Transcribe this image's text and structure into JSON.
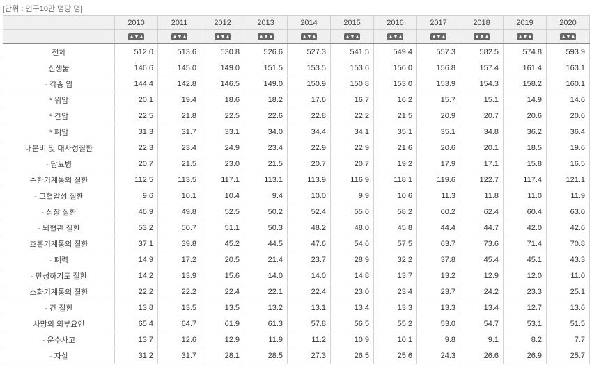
{
  "unit_label": "[단위 : 인구10만 명당 명]",
  "years": [
    "2010",
    "2011",
    "2012",
    "2013",
    "2014",
    "2015",
    "2016",
    "2017",
    "2018",
    "2019",
    "2020"
  ],
  "sort_icon_glyph": "▲▼▲",
  "rows": [
    {
      "label": "전체",
      "v": [
        "512.0",
        "513.6",
        "530.8",
        "526.6",
        "527.3",
        "541.5",
        "549.4",
        "557.3",
        "582.5",
        "574.8",
        "593.9"
      ]
    },
    {
      "label": "신생물",
      "v": [
        "146.6",
        "145.0",
        "149.0",
        "151.5",
        "153.5",
        "153.6",
        "156.0",
        "156.8",
        "157.4",
        "161.4",
        "163.1"
      ]
    },
    {
      "label": "- 각종 암",
      "v": [
        "144.4",
        "142.8",
        "146.5",
        "149.0",
        "150.9",
        "150.8",
        "153.0",
        "153.9",
        "154.3",
        "158.2",
        "160.1"
      ]
    },
    {
      "label": "* 위암",
      "v": [
        "20.1",
        "19.4",
        "18.6",
        "18.2",
        "17.6",
        "16.7",
        "16.2",
        "15.7",
        "15.1",
        "14.9",
        "14.6"
      ]
    },
    {
      "label": "* 간암",
      "v": [
        "22.5",
        "21.8",
        "22.5",
        "22.6",
        "22.8",
        "22.2",
        "21.5",
        "20.9",
        "20.7",
        "20.6",
        "20.6"
      ]
    },
    {
      "label": "* 폐암",
      "v": [
        "31.3",
        "31.7",
        "33.1",
        "34.0",
        "34.4",
        "34.1",
        "35.1",
        "35.1",
        "34.8",
        "36.2",
        "36.4"
      ]
    },
    {
      "label": "내분비 및 대사성질환",
      "v": [
        "22.3",
        "23.4",
        "24.9",
        "23.4",
        "22.9",
        "22.9",
        "21.6",
        "20.6",
        "20.1",
        "18.5",
        "19.6"
      ]
    },
    {
      "label": "- 당뇨병",
      "v": [
        "20.7",
        "21.5",
        "23.0",
        "21.5",
        "20.7",
        "20.7",
        "19.2",
        "17.9",
        "17.1",
        "15.8",
        "16.5"
      ]
    },
    {
      "label": "순환기계통의 질환",
      "v": [
        "112.5",
        "113.5",
        "117.1",
        "113.1",
        "113.9",
        "116.9",
        "118.1",
        "119.6",
        "122.7",
        "117.4",
        "121.1"
      ]
    },
    {
      "label": "- 고혈압성 질환",
      "v": [
        "9.6",
        "10.1",
        "10.4",
        "9.4",
        "10.0",
        "9.9",
        "10.6",
        "11.3",
        "11.8",
        "11.0",
        "11.9"
      ]
    },
    {
      "label": "- 심장 질환",
      "v": [
        "46.9",
        "49.8",
        "52.5",
        "50.2",
        "52.4",
        "55.6",
        "58.2",
        "60.2",
        "62.4",
        "60.4",
        "63.0"
      ]
    },
    {
      "label": "- 뇌혈관 질환",
      "v": [
        "53.2",
        "50.7",
        "51.1",
        "50.3",
        "48.2",
        "48.0",
        "45.8",
        "44.4",
        "44.7",
        "42.0",
        "42.6"
      ]
    },
    {
      "label": "호흡기계통의 질환",
      "v": [
        "37.1",
        "39.8",
        "45.2",
        "44.5",
        "47.6",
        "54.6",
        "57.5",
        "63.7",
        "73.6",
        "71.4",
        "70.8"
      ]
    },
    {
      "label": "- 폐렴",
      "v": [
        "14.9",
        "17.2",
        "20.5",
        "21.4",
        "23.7",
        "28.9",
        "32.2",
        "37.8",
        "45.4",
        "45.1",
        "43.3"
      ]
    },
    {
      "label": "- 만성하기도 질환",
      "v": [
        "14.2",
        "13.9",
        "15.6",
        "14.0",
        "14.0",
        "14.8",
        "13.7",
        "13.2",
        "12.9",
        "12.0",
        "11.0"
      ]
    },
    {
      "label": "소화기계통의 질환",
      "v": [
        "22.2",
        "22.2",
        "22.4",
        "22.1",
        "22.4",
        "23.0",
        "23.4",
        "23.7",
        "24.2",
        "23.3",
        "25.1"
      ]
    },
    {
      "label": "- 간 질환",
      "v": [
        "13.8",
        "13.5",
        "13.5",
        "13.2",
        "13.1",
        "13.4",
        "13.3",
        "13.3",
        "13.4",
        "12.7",
        "13.6"
      ]
    },
    {
      "label": "사망의 외부요인",
      "v": [
        "65.4",
        "64.7",
        "61.9",
        "61.3",
        "57.8",
        "56.5",
        "55.2",
        "53.0",
        "54.7",
        "53.1",
        "51.5"
      ]
    },
    {
      "label": "- 운수사고",
      "v": [
        "13.7",
        "12.6",
        "12.9",
        "11.9",
        "11.2",
        "10.9",
        "10.1",
        "9.8",
        "9.1",
        "8.2",
        "7.7"
      ]
    },
    {
      "label": "- 자살",
      "v": [
        "31.2",
        "31.7",
        "28.1",
        "28.5",
        "27.3",
        "26.5",
        "25.6",
        "24.3",
        "26.6",
        "26.9",
        "25.7"
      ]
    }
  ]
}
